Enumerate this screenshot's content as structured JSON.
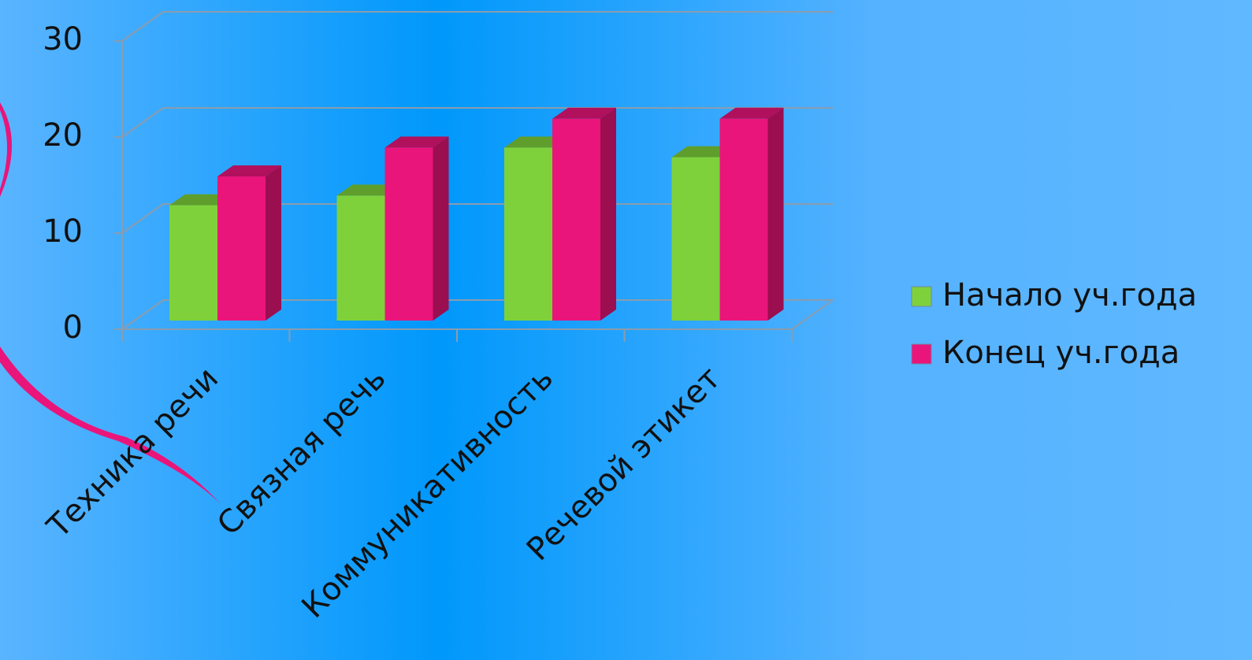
{
  "chart_data": {
    "type": "bar3d",
    "categories": [
      "Техника речи",
      "Связная речь",
      "Коммуникативность",
      "Речевой этикет"
    ],
    "series": [
      {
        "name": "Начало уч.года",
        "color": "#7fd13b",
        "values": [
          12,
          13,
          18,
          17
        ]
      },
      {
        "name": "Конец уч.года",
        "color": "#ea157a",
        "values": [
          15,
          18,
          21,
          21
        ]
      }
    ],
    "ylim": [
      0,
      30
    ],
    "yticks": [
      0,
      10,
      20,
      30
    ],
    "grid": true,
    "legend": "right"
  }
}
